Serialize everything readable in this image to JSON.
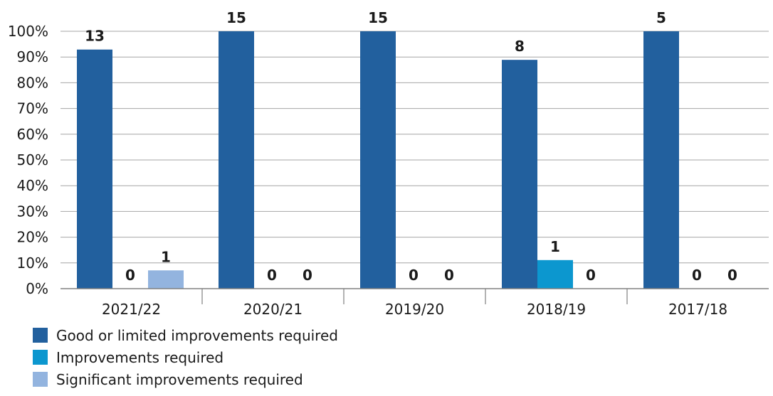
{
  "chart_data": {
    "type": "bar",
    "categories": [
      "2021/22",
      "2020/21",
      "2019/20",
      "2018/19",
      "2017/18"
    ],
    "series": [
      {
        "name": "Good or limited improvements required",
        "color": "#22609e",
        "values": [
          92.9,
          100,
          100,
          88.9,
          100
        ],
        "labels": [
          "13",
          "15",
          "15",
          "8",
          "5"
        ]
      },
      {
        "name": "Improvements required",
        "color": "#0c97cf",
        "values": [
          0,
          0,
          0,
          11.1,
          0
        ],
        "labels": [
          "0",
          "0",
          "0",
          "1",
          "0"
        ]
      },
      {
        "name": "Significant improvements required",
        "color": "#93b4df",
        "values": [
          7.1,
          0,
          0,
          0,
          0
        ],
        "labels": [
          "1",
          "0",
          "0",
          "0",
          "0"
        ]
      }
    ],
    "ylim": [
      0,
      100
    ],
    "yticks": [
      "0%",
      "10%",
      "20%",
      "30%",
      "40%",
      "50%",
      "60%",
      "70%",
      "80%",
      "90%",
      "100%"
    ],
    "grid": true,
    "legend_position": "bottom-left"
  }
}
